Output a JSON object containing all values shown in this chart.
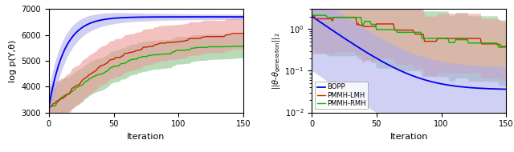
{
  "left": {
    "ylabel": "log p(Y,θ)",
    "xlabel": "Iteration",
    "xlim": [
      0,
      150
    ],
    "ylim": [
      3000,
      7000
    ],
    "yticks": [
      3000,
      4000,
      5000,
      6000,
      7000
    ],
    "xticks": [
      0,
      50,
      100,
      150
    ],
    "bopp_color": "#0000ee",
    "pmmh_lmh_color": "#cc2200",
    "pmmh_rmh_color": "#00bb00",
    "bopp_fill": "#aaaaee",
    "pmmh_lmh_fill": "#ee9999",
    "pmmh_rmh_fill": "#99cc99"
  },
  "right": {
    "ylabel": "||\\theta-\\theta_{generation}||_2",
    "xlabel": "Iteration",
    "xlim": [
      0,
      150
    ],
    "xticks": [
      0,
      50,
      100,
      150
    ],
    "bopp_color": "#0000ee",
    "pmmh_lmh_color": "#cc2200",
    "pmmh_rmh_color": "#00bb00",
    "bopp_fill": "#aaaaee",
    "pmmh_lmh_fill": "#ee9999",
    "pmmh_rmh_fill": "#99cc99",
    "legend_labels": [
      "BOPP",
      "PMMH-LMH",
      "PMMH-RMH"
    ]
  }
}
